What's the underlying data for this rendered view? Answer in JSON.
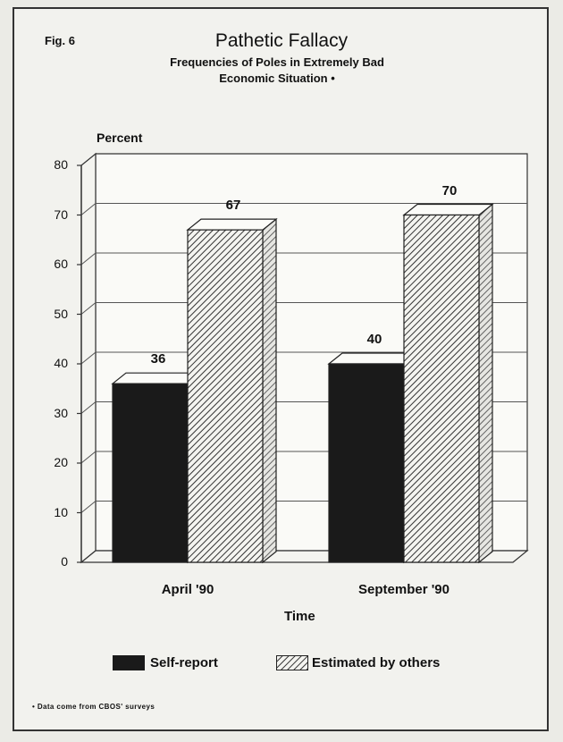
{
  "fig_label": "Fig. 6",
  "chart_data": {
    "type": "bar",
    "title": "Pathetic Fallacy",
    "subtitle_line1": "Frequencies of Poles in Extremely Bad",
    "subtitle_line2": "Economic Situation •",
    "ylabel": "Percent",
    "xlabel": "Time",
    "ylim": [
      0,
      80
    ],
    "yticks": [
      0,
      10,
      20,
      30,
      40,
      50,
      60,
      70,
      80
    ],
    "categories": [
      "April '90",
      "September '90"
    ],
    "series": [
      {
        "name": "Self-report",
        "values": [
          36,
          40
        ],
        "color": "#1a1a1a"
      },
      {
        "name": "Estimated by others",
        "values": [
          67,
          70
        ],
        "color": "hatched"
      }
    ],
    "data_labels": [
      "36",
      "67",
      "40",
      "70"
    ],
    "grid": true,
    "legend_position": "bottom"
  },
  "footnote": "• Data come from CBOS' surveys"
}
